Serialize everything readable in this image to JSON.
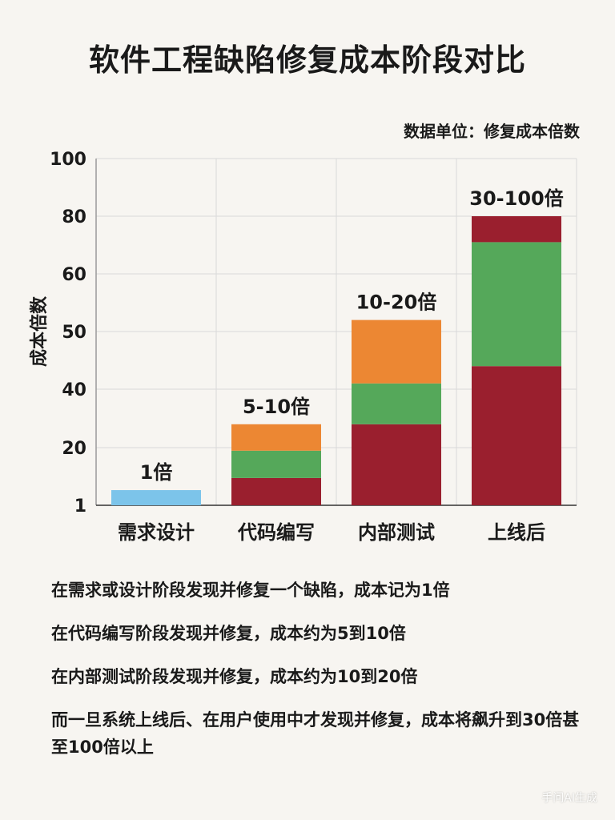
{
  "title": "软件工程缺陷修复成本阶段对比",
  "unit_note": "数据单位：修复成本倍数",
  "chart_data": {
    "type": "bar",
    "stacked": true,
    "categories": [
      "需求设计",
      "代码编写",
      "内部测试",
      "上线后"
    ],
    "ylabel": "成本倍数",
    "yticks": [
      "1",
      "20",
      "40",
      "50",
      "60",
      "80",
      "100"
    ],
    "ylim": [
      1,
      100
    ],
    "bar_labels": [
      "1倍",
      "5-10倍",
      "10-20倍",
      "30-100倍"
    ],
    "bar_totals": [
      6,
      28,
      52,
      80
    ],
    "segments": [
      [
        {
          "value": 6,
          "color": "#7cc4ea"
        }
      ],
      [
        {
          "value": 10,
          "color": "#9a1f2e"
        },
        {
          "value": 9,
          "color": "#55a85a"
        },
        {
          "value": 9,
          "color": "#ec8733"
        }
      ],
      [
        {
          "value": 28,
          "color": "#9a1f2e"
        },
        {
          "value": 13,
          "color": "#55a85a"
        },
        {
          "value": 11,
          "color": "#ec8733"
        }
      ],
      [
        {
          "value": 44,
          "color": "#9a1f2e"
        },
        {
          "value": 27,
          "color": "#55a85a"
        },
        {
          "value": 9,
          "color": "#9a1f2e"
        }
      ]
    ],
    "grid": true
  },
  "notes": [
    "在需求或设计阶段发现并修复一个缺陷，成本记为1倍",
    "在代码编写阶段发现并修复，成本约为5到10倍",
    "在内部测试阶段发现并修复，成本约为10到20倍",
    "而一旦系统上线后、在用户使用中才发现并修复，成本将飙升到30倍甚至100倍以上"
  ],
  "watermark": "手问AI生成"
}
